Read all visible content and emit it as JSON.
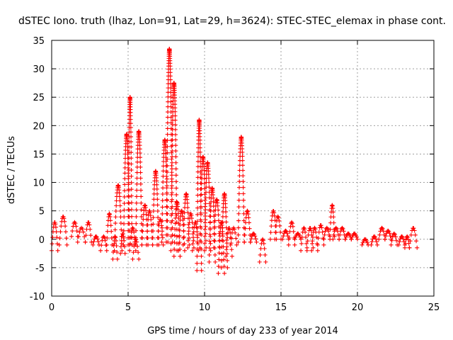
{
  "chart_data": {
    "type": "scatter",
    "title": "dSTEC Iono. truth (lhaz, Lon=91, Lat=29, h=3624): STEC-STEC_elemax in phase cont.",
    "xlabel": "GPS time / hours of day 233 of year 2014",
    "ylabel": "dSTEC  / TECUs",
    "xlim": [
      0,
      25
    ],
    "ylim": [
      -10,
      35
    ],
    "xticks": [
      0,
      5,
      10,
      15,
      20,
      25
    ],
    "yticks": [
      -10,
      -5,
      0,
      5,
      10,
      15,
      20,
      25,
      30,
      35
    ],
    "grid": true,
    "marker": "+",
    "color": "#ff0000",
    "series": [
      {
        "name": "dSTEC",
        "arcs": [
          {
            "x": [
              0.0,
              0.4
            ],
            "y": [
              -2.0,
              3.0
            ]
          },
          {
            "x": [
              0.5,
              1.0
            ],
            "y": [
              -1.0,
              4.0
            ]
          },
          {
            "x": [
              1.3,
              1.7
            ],
            "y": [
              0.5,
              3.0
            ]
          },
          {
            "x": [
              1.7,
              2.2
            ],
            "y": [
              -0.5,
              2.0
            ]
          },
          {
            "x": [
              2.2,
              2.6
            ],
            "y": [
              -0.5,
              3.0
            ]
          },
          {
            "x": [
              2.7,
              3.1
            ],
            "y": [
              -1.0,
              0.5
            ]
          },
          {
            "x": [
              3.2,
              3.6
            ],
            "y": [
              -2.0,
              0.5
            ]
          },
          {
            "x": [
              3.6,
              3.95
            ],
            "y": [
              -1.0,
              4.5
            ]
          },
          {
            "x": [
              4.0,
              4.3
            ],
            "y": [
              -3.5,
              0.5
            ]
          },
          {
            "x": [
              4.1,
              4.6
            ],
            "y": [
              -2.0,
              9.5
            ]
          },
          {
            "x": [
              4.5,
              4.8
            ],
            "y": [
              -2.5,
              1.0
            ]
          },
          {
            "x": [
              4.7,
              5.1
            ],
            "y": [
              -1.0,
              18.5
            ]
          },
          {
            "x": [
              5.0,
              5.25
            ],
            "y": [
              -1.0,
              25.0
            ]
          },
          {
            "x": [
              5.1,
              5.5
            ],
            "y": [
              -2.0,
              2.0
            ]
          },
          {
            "x": [
              5.3,
              5.7
            ],
            "y": [
              -3.5,
              0.0
            ]
          },
          {
            "x": [
              5.5,
              5.9
            ],
            "y": [
              -1.0,
              19.0
            ]
          },
          {
            "x": [
              5.9,
              6.3
            ],
            "y": [
              -1.0,
              6.0
            ]
          },
          {
            "x": [
              6.2,
              6.6
            ],
            "y": [
              -1.0,
              5.0
            ]
          },
          {
            "x": [
              6.6,
              7.0
            ],
            "y": [
              -1.0,
              12.0
            ]
          },
          {
            "x": [
              6.9,
              7.3
            ],
            "y": [
              -1.0,
              3.5
            ]
          },
          {
            "x": [
              7.2,
              7.6
            ],
            "y": [
              -0.5,
              17.5
            ]
          },
          {
            "x": [
              7.5,
              7.9
            ],
            "y": [
              -0.5,
              33.5
            ]
          },
          {
            "x": [
              7.8,
              8.2
            ],
            "y": [
              -2.0,
              27.5
            ]
          },
          {
            "x": [
              8.0,
              8.4
            ],
            "y": [
              -3.0,
              6.5
            ]
          },
          {
            "x": [
              8.3,
              8.7
            ],
            "y": [
              -2.0,
              5.0
            ]
          },
          {
            "x": [
              8.6,
              9.0
            ],
            "y": [
              -1.0,
              8.0
            ]
          },
          {
            "x": [
              8.9,
              9.3
            ],
            "y": [
              -1.5,
              4.5
            ]
          },
          {
            "x": [
              9.2,
              9.6
            ],
            "y": [
              -2.0,
              3.0
            ]
          },
          {
            "x": [
              9.5,
              9.8
            ],
            "y": [
              -5.5,
              21.0
            ]
          },
          {
            "x": [
              9.7,
              10.1
            ],
            "y": [
              -1.5,
              14.5
            ]
          },
          {
            "x": [
              10.0,
              10.4
            ],
            "y": [
              -2.0,
              13.5
            ]
          },
          {
            "x": [
              10.3,
              10.7
            ],
            "y": [
              -4.0,
              9.0
            ]
          },
          {
            "x": [
              10.6,
              11.0
            ],
            "y": [
              -1.5,
              7.0
            ]
          },
          {
            "x": [
              10.9,
              11.3
            ],
            "y": [
              -6.0,
              3.0
            ]
          },
          {
            "x": [
              11.1,
              11.5
            ],
            "y": [
              -5.0,
              8.0
            ]
          },
          {
            "x": [
              11.4,
              11.8
            ],
            "y": [
              -3.0,
              2.0
            ]
          },
          {
            "x": [
              11.7,
              12.1
            ],
            "y": [
              -1.0,
              2.0
            ]
          },
          {
            "x": [
              12.2,
              12.6
            ],
            "y": [
              -0.5,
              18.0
            ]
          },
          {
            "x": [
              12.6,
              13.0
            ],
            "y": [
              -0.5,
              5.0
            ]
          },
          {
            "x": [
              13.0,
              13.4
            ],
            "y": [
              -0.5,
              1.0
            ]
          },
          {
            "x": [
              13.6,
              14.0
            ],
            "y": [
              -4.0,
              0.0
            ]
          },
          {
            "x": [
              14.3,
              14.7
            ],
            "y": [
              0.0,
              5.0
            ]
          },
          {
            "x": [
              14.6,
              15.0
            ],
            "y": [
              0.0,
              4.0
            ]
          },
          {
            "x": [
              15.1,
              15.5
            ],
            "y": [
              0.0,
              1.5
            ]
          },
          {
            "x": [
              15.5,
              15.9
            ],
            "y": [
              -1.0,
              3.0
            ]
          },
          {
            "x": [
              15.9,
              16.3
            ],
            "y": [
              0.0,
              1.0
            ]
          },
          {
            "x": [
              16.3,
              16.7
            ],
            "y": [
              -2.0,
              2.0
            ]
          },
          {
            "x": [
              16.7,
              17.1
            ],
            "y": [
              -1.5,
              2.0
            ]
          },
          {
            "x": [
              17.0,
              17.4
            ],
            "y": [
              -2.0,
              2.0
            ]
          },
          {
            "x": [
              17.4,
              17.8
            ],
            "y": [
              -1.0,
              2.5
            ]
          },
          {
            "x": [
              17.8,
              18.2
            ],
            "y": [
              0.0,
              2.0
            ]
          },
          {
            "x": [
              18.2,
              18.5
            ],
            "y": [
              0.5,
              6.0
            ]
          },
          {
            "x": [
              18.4,
              18.8
            ],
            "y": [
              0.0,
              2.0
            ]
          },
          {
            "x": [
              18.8,
              19.2
            ],
            "y": [
              0.0,
              2.0
            ]
          },
          {
            "x": [
              19.2,
              19.6
            ],
            "y": [
              0.0,
              1.0
            ]
          },
          {
            "x": [
              19.6,
              20.0
            ],
            "y": [
              0.0,
              1.0
            ]
          },
          {
            "x": [
              20.3,
              20.7
            ],
            "y": [
              -1.0,
              0.0
            ]
          },
          {
            "x": [
              20.9,
              21.3
            ],
            "y": [
              -1.0,
              0.5
            ]
          },
          {
            "x": [
              21.4,
              21.8
            ],
            "y": [
              0.0,
              2.0
            ]
          },
          {
            "x": [
              21.8,
              22.2
            ],
            "y": [
              0.0,
              1.5
            ]
          },
          {
            "x": [
              22.2,
              22.6
            ],
            "y": [
              -1.0,
              1.0
            ]
          },
          {
            "x": [
              22.7,
              23.1
            ],
            "y": [
              -1.0,
              0.5
            ]
          },
          {
            "x": [
              23.1,
              23.4
            ],
            "y": [
              -1.5,
              0.5
            ]
          },
          {
            "x": [
              23.4,
              23.9
            ],
            "y": [
              -1.5,
              2.0
            ]
          }
        ]
      }
    ]
  }
}
